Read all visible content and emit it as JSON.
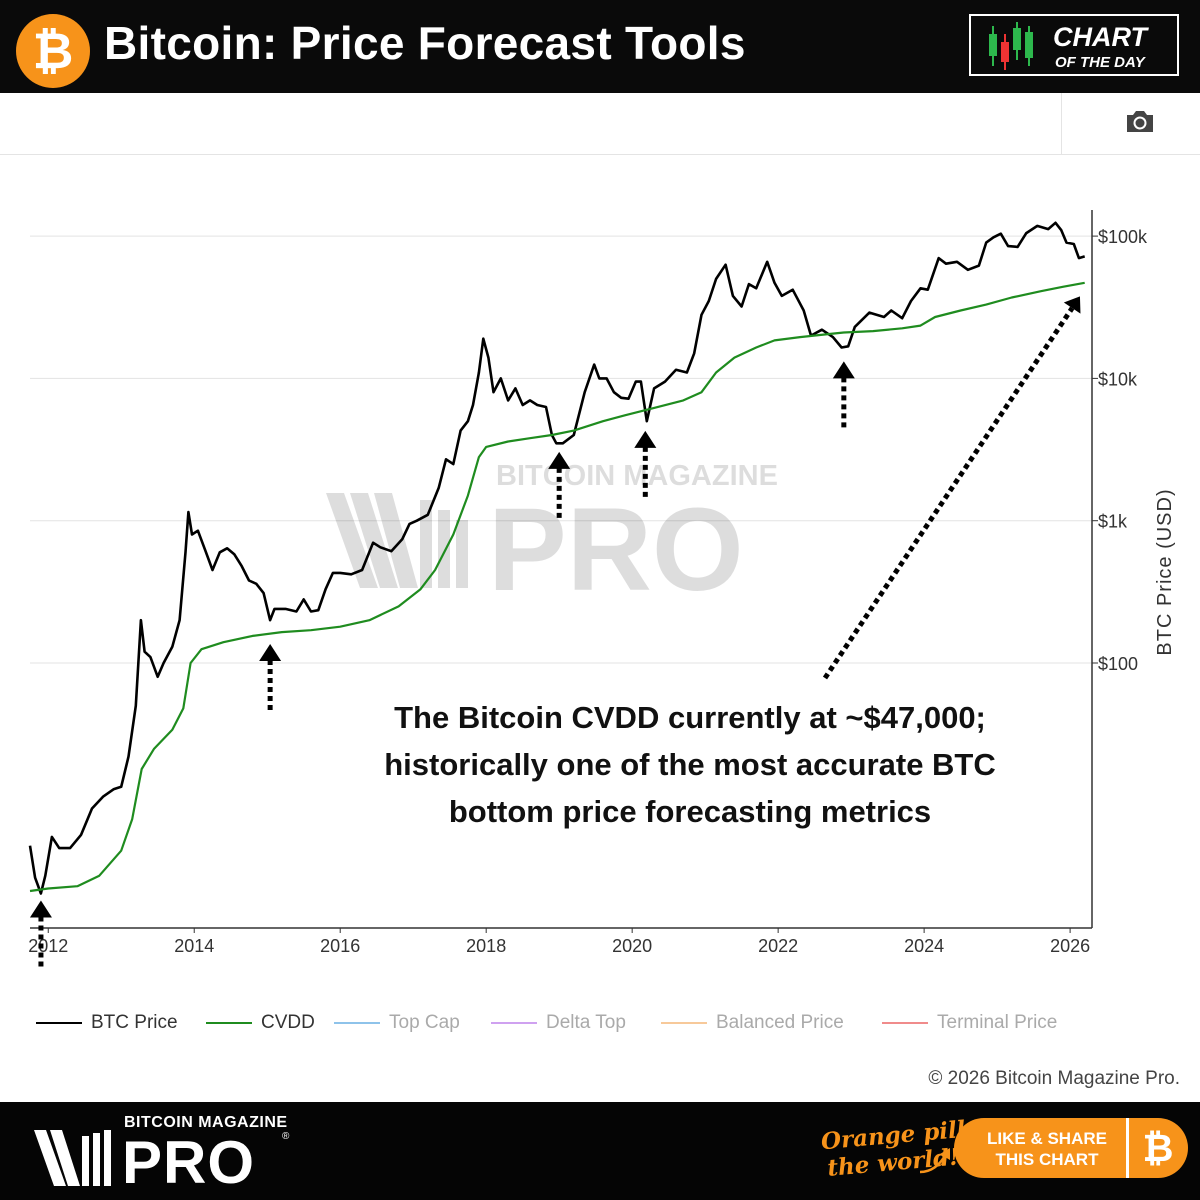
{
  "header": {
    "title": "Bitcoin: Price Forecast Tools",
    "logo_glyph": "₿",
    "badge_line1": "CHART",
    "badge_line2": "OF THE DAY"
  },
  "toolbar": {
    "camera_icon": "camera-icon"
  },
  "chart_data": {
    "type": "line",
    "y_scale": "log",
    "ylabel": "BTC Price (USD)",
    "y_ticks": [
      100,
      1000,
      10000,
      100000
    ],
    "y_tick_labels": [
      "$100",
      "$1k",
      "$10k",
      "$100k"
    ],
    "x_tick_labels": [
      "2012",
      "2014",
      "2016",
      "2018",
      "2020",
      "2022",
      "2024",
      "2026"
    ],
    "xlim": [
      2011.75,
      2026.3
    ],
    "grid": true,
    "series": [
      {
        "name": "BTC Price",
        "color": "#000000",
        "points": [
          [
            2011.75,
            5.2
          ],
          [
            2011.82,
            3.1
          ],
          [
            2011.9,
            2.4
          ],
          [
            2011.96,
            3.2
          ],
          [
            2012.05,
            6
          ],
          [
            2012.15,
            5
          ],
          [
            2012.3,
            5
          ],
          [
            2012.45,
            6.2
          ],
          [
            2012.6,
            9.5
          ],
          [
            2012.75,
            11.5
          ],
          [
            2012.9,
            13
          ],
          [
            2013.0,
            13.5
          ],
          [
            2013.1,
            22
          ],
          [
            2013.2,
            50
          ],
          [
            2013.27,
            200
          ],
          [
            2013.32,
            120
          ],
          [
            2013.4,
            110
          ],
          [
            2013.5,
            80
          ],
          [
            2013.58,
            100
          ],
          [
            2013.7,
            130
          ],
          [
            2013.8,
            200
          ],
          [
            2013.88,
            600
          ],
          [
            2013.92,
            1150
          ],
          [
            2013.97,
            800
          ],
          [
            2014.05,
            850
          ],
          [
            2014.15,
            620
          ],
          [
            2014.25,
            450
          ],
          [
            2014.35,
            600
          ],
          [
            2014.45,
            640
          ],
          [
            2014.55,
            580
          ],
          [
            2014.65,
            480
          ],
          [
            2014.75,
            380
          ],
          [
            2014.85,
            360
          ],
          [
            2014.95,
            310
          ],
          [
            2015.04,
            200
          ],
          [
            2015.1,
            240
          ],
          [
            2015.25,
            240
          ],
          [
            2015.4,
            230
          ],
          [
            2015.5,
            280
          ],
          [
            2015.6,
            230
          ],
          [
            2015.7,
            235
          ],
          [
            2015.8,
            330
          ],
          [
            2015.9,
            430
          ],
          [
            2016.0,
            430
          ],
          [
            2016.15,
            420
          ],
          [
            2016.3,
            450
          ],
          [
            2016.45,
            700
          ],
          [
            2016.55,
            650
          ],
          [
            2016.7,
            610
          ],
          [
            2016.85,
            740
          ],
          [
            2016.95,
            950
          ],
          [
            2017.05,
            1000
          ],
          [
            2017.2,
            1100
          ],
          [
            2017.35,
            1700
          ],
          [
            2017.45,
            2700
          ],
          [
            2017.55,
            2500
          ],
          [
            2017.65,
            4300
          ],
          [
            2017.75,
            5000
          ],
          [
            2017.82,
            6500
          ],
          [
            2017.9,
            11000
          ],
          [
            2017.96,
            19000
          ],
          [
            2018.03,
            14000
          ],
          [
            2018.1,
            8000
          ],
          [
            2018.2,
            10000
          ],
          [
            2018.3,
            7000
          ],
          [
            2018.4,
            8500
          ],
          [
            2018.5,
            6500
          ],
          [
            2018.6,
            7000
          ],
          [
            2018.7,
            6500
          ],
          [
            2018.82,
            6300
          ],
          [
            2018.9,
            4000
          ],
          [
            2018.96,
            3500
          ],
          [
            2019.05,
            3500
          ],
          [
            2019.2,
            4000
          ],
          [
            2019.35,
            8000
          ],
          [
            2019.48,
            12500
          ],
          [
            2019.55,
            10000
          ],
          [
            2019.65,
            10000
          ],
          [
            2019.75,
            8000
          ],
          [
            2019.85,
            7300
          ],
          [
            2019.95,
            7200
          ],
          [
            2020.05,
            9500
          ],
          [
            2020.12,
            9500
          ],
          [
            2020.2,
            5000
          ],
          [
            2020.3,
            8500
          ],
          [
            2020.45,
            9500
          ],
          [
            2020.6,
            11500
          ],
          [
            2020.75,
            11000
          ],
          [
            2020.85,
            15000
          ],
          [
            2020.95,
            28000
          ],
          [
            2021.05,
            35000
          ],
          [
            2021.15,
            50000
          ],
          [
            2021.28,
            63000
          ],
          [
            2021.38,
            38000
          ],
          [
            2021.5,
            32000
          ],
          [
            2021.6,
            46000
          ],
          [
            2021.7,
            43000
          ],
          [
            2021.85,
            66000
          ],
          [
            2021.95,
            47000
          ],
          [
            2022.05,
            38000
          ],
          [
            2022.2,
            42000
          ],
          [
            2022.35,
            30000
          ],
          [
            2022.45,
            20000
          ],
          [
            2022.6,
            22000
          ],
          [
            2022.75,
            19500
          ],
          [
            2022.87,
            16500
          ],
          [
            2022.96,
            16800
          ],
          [
            2023.05,
            23000
          ],
          [
            2023.25,
            29000
          ],
          [
            2023.45,
            27000
          ],
          [
            2023.55,
            30000
          ],
          [
            2023.7,
            26500
          ],
          [
            2023.82,
            35000
          ],
          [
            2023.95,
            43000
          ],
          [
            2024.05,
            42000
          ],
          [
            2024.2,
            70000
          ],
          [
            2024.3,
            64000
          ],
          [
            2024.45,
            66000
          ],
          [
            2024.6,
            58000
          ],
          [
            2024.75,
            62000
          ],
          [
            2024.85,
            90000
          ],
          [
            2024.95,
            98000
          ],
          [
            2025.05,
            104000
          ],
          [
            2025.15,
            85000
          ],
          [
            2025.28,
            84000
          ],
          [
            2025.4,
            105000
          ],
          [
            2025.55,
            118000
          ],
          [
            2025.7,
            112000
          ],
          [
            2025.8,
            124000
          ],
          [
            2025.88,
            110000
          ],
          [
            2025.95,
            90000
          ],
          [
            2026.05,
            88000
          ],
          [
            2026.12,
            70000
          ],
          [
            2026.2,
            72000
          ]
        ]
      },
      {
        "name": "CVDD",
        "color": "#1f8c1f",
        "points": [
          [
            2011.75,
            2.5
          ],
          [
            2012.0,
            2.6
          ],
          [
            2012.4,
            2.7
          ],
          [
            2012.7,
            3.2
          ],
          [
            2013.0,
            4.8
          ],
          [
            2013.15,
            8
          ],
          [
            2013.28,
            18
          ],
          [
            2013.45,
            25
          ],
          [
            2013.7,
            34
          ],
          [
            2013.85,
            48
          ],
          [
            2013.95,
            100
          ],
          [
            2014.1,
            125
          ],
          [
            2014.4,
            140
          ],
          [
            2014.8,
            155
          ],
          [
            2015.2,
            165
          ],
          [
            2015.6,
            170
          ],
          [
            2016.0,
            180
          ],
          [
            2016.4,
            200
          ],
          [
            2016.8,
            250
          ],
          [
            2017.1,
            330
          ],
          [
            2017.3,
            450
          ],
          [
            2017.55,
            800
          ],
          [
            2017.75,
            1500
          ],
          [
            2017.9,
            2800
          ],
          [
            2018.0,
            3300
          ],
          [
            2018.3,
            3600
          ],
          [
            2018.6,
            3800
          ],
          [
            2018.9,
            4000
          ],
          [
            2019.2,
            4300
          ],
          [
            2019.6,
            5000
          ],
          [
            2019.9,
            5500
          ],
          [
            2020.3,
            6200
          ],
          [
            2020.7,
            7000
          ],
          [
            2020.95,
            8000
          ],
          [
            2021.15,
            11000
          ],
          [
            2021.4,
            14000
          ],
          [
            2021.7,
            16500
          ],
          [
            2021.95,
            18500
          ],
          [
            2022.3,
            19500
          ],
          [
            2022.7,
            20500
          ],
          [
            2022.9,
            21000
          ],
          [
            2023.3,
            21500
          ],
          [
            2023.7,
            22500
          ],
          [
            2023.95,
            23500
          ],
          [
            2024.15,
            27000
          ],
          [
            2024.5,
            30000
          ],
          [
            2024.85,
            33000
          ],
          [
            2025.2,
            37000
          ],
          [
            2025.6,
            41000
          ],
          [
            2025.9,
            44000
          ],
          [
            2026.2,
            47000
          ]
        ]
      },
      {
        "name": "Top Cap",
        "color": "#8ec3ea",
        "points": []
      },
      {
        "name": "Delta Top",
        "color": "#cfa1f0",
        "points": []
      },
      {
        "name": "Balanced Price",
        "color": "#f7c99a",
        "points": []
      },
      {
        "name": "Terminal Price",
        "color": "#f08b8b",
        "points": []
      }
    ],
    "annotations": [
      {
        "text_lines": [
          "The Bitcoin CVDD currently at ~$47,000;",
          "historically one of the most accurate BTC",
          "bottom price forecasting metrics"
        ]
      }
    ],
    "arrow_bottoms": [
      {
        "x": 2011.9,
        "y": 2.6
      },
      {
        "x": 2015.04,
        "y": 165
      },
      {
        "x": 2019.0,
        "y": 3700
      },
      {
        "x": 2020.18,
        "y": 5200
      },
      {
        "x": 2022.9,
        "y": 16000
      },
      {
        "x": 2026.15,
        "y": 47000
      }
    ],
    "watermark": {
      "line1": "BITCOIN MAGAZINE",
      "line2": "PRO"
    }
  },
  "legend": {
    "items": [
      {
        "label": "BTC Price",
        "color": "#000000",
        "active": true
      },
      {
        "label": "CVDD",
        "color": "#1f8c1f",
        "active": true
      },
      {
        "label": "Top Cap",
        "color": "#8ec3ea",
        "active": false
      },
      {
        "label": "Delta Top",
        "color": "#cfa1f0",
        "active": false
      },
      {
        "label": "Balanced Price",
        "color": "#f7c99a",
        "active": false
      },
      {
        "label": "Terminal Price",
        "color": "#f08b8b",
        "active": false
      }
    ]
  },
  "copyright": "© 2026 Bitcoin Magazine Pro.",
  "footer": {
    "brand_small": "BITCOIN MAGAZINE",
    "brand_big": "PRO",
    "registered": "®",
    "tagline_line1": "Orange pill",
    "tagline_line2": "the world!",
    "share_line1": "LIKE & SHARE",
    "share_line2": "THIS CHART",
    "share_glyph": "₿"
  },
  "colors": {
    "brand_orange": "#f7931a",
    "header_bg": "#0a0a0a"
  }
}
